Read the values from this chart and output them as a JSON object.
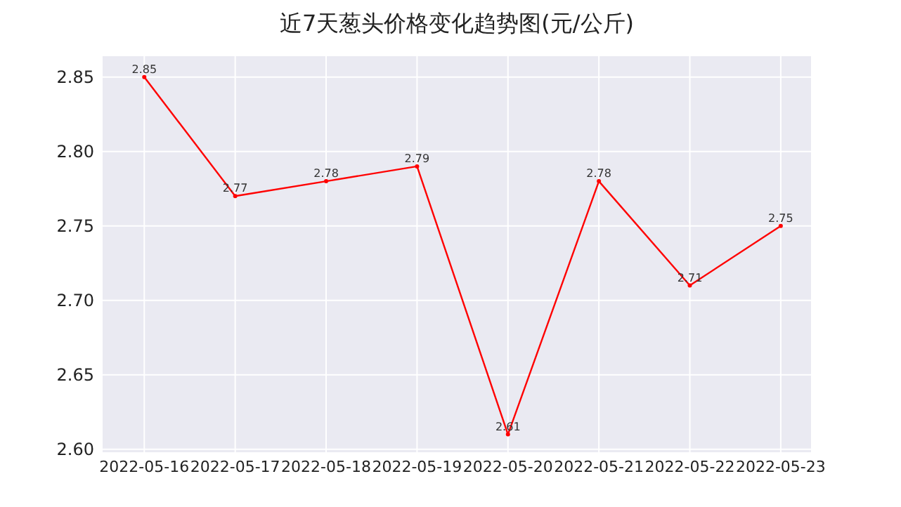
{
  "chart_data": {
    "type": "line",
    "title": "近7天葱头价格变化趋势图(元/公斤)",
    "x": [
      "2022-05-16",
      "2022-05-17",
      "2022-05-18",
      "2022-05-19",
      "2022-05-20",
      "2022-05-21",
      "2022-05-22",
      "2022-05-23"
    ],
    "series": [
      {
        "color": "#ff0000",
        "values": [
          2.85,
          2.77,
          2.78,
          2.79,
          2.61,
          2.78,
          2.71,
          2.75
        ]
      }
    ],
    "xlim": [
      "2022-05-15T13:00",
      "2022-05-23T08:00"
    ],
    "xticks": [
      "2022-05-16",
      "2022-05-17",
      "2022-05-18",
      "2022-05-19",
      "2022-05-20",
      "2022-05-21",
      "2022-05-22",
      "2022-05-23"
    ],
    "ylim": [
      2.598,
      2.864
    ],
    "yticks": [
      {
        "value": 2.6,
        "label": "2.60"
      },
      2.65,
      {
        "value": 2.7,
        "label": "2.70"
      },
      2.75,
      {
        "value": 2.8,
        "label": "2.80"
      },
      2.85
    ],
    "grid": true,
    "marker": "circle",
    "line_style": "solid",
    "data_labels": true
  }
}
